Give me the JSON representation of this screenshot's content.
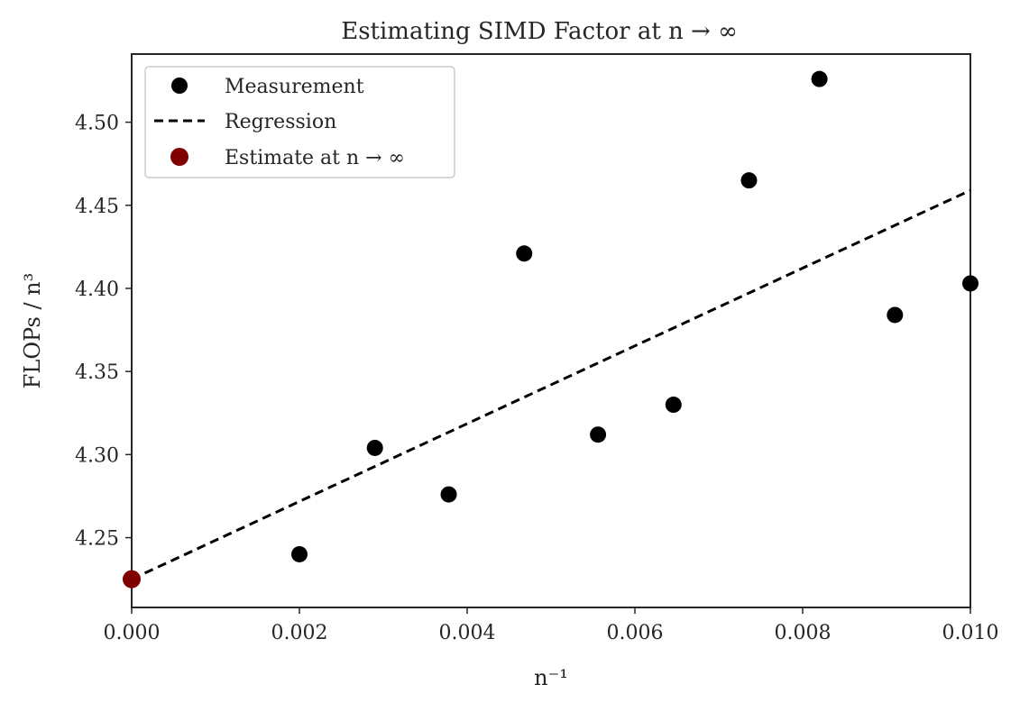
{
  "chart_data": {
    "type": "scatter",
    "title": "Estimating SIMD Factor at n → ∞",
    "xlabel": "n⁻¹",
    "ylabel": "FLOPs / n³",
    "xlim": [
      0.0,
      0.01
    ],
    "ylim": [
      4.208,
      4.541
    ],
    "x_ticks": [
      "0.000",
      "0.002",
      "0.004",
      "0.006",
      "0.008",
      "0.010"
    ],
    "y_ticks": [
      "4.25",
      "4.30",
      "4.35",
      "4.40",
      "4.45",
      "4.50"
    ],
    "grid": false,
    "legend_position": "top-left",
    "series": [
      {
        "name": "Measurement",
        "kind": "scatter",
        "color": "#000000",
        "x": [
          0.002,
          0.0029,
          0.00378,
          0.00468,
          0.00556,
          0.00646,
          0.00736,
          0.0082,
          0.0091,
          0.01
        ],
        "y": [
          4.24,
          4.304,
          4.276,
          4.421,
          4.312,
          4.33,
          4.465,
          4.526,
          4.384,
          4.403
        ]
      },
      {
        "name": "Regression",
        "kind": "line",
        "style": "dashed",
        "color": "#000000",
        "x": [
          0.0,
          0.01
        ],
        "y": [
          4.225,
          4.459
        ]
      },
      {
        "name": "Estimate at n → ∞",
        "kind": "scatter",
        "color": "#800000",
        "x": [
          0.0
        ],
        "y": [
          4.225
        ]
      }
    ]
  }
}
